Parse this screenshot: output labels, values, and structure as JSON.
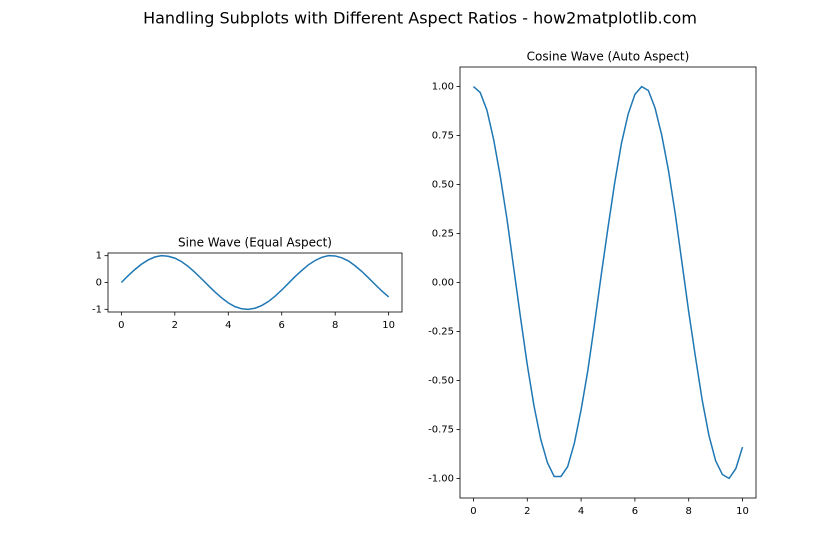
{
  "title": "Handling Subplots with Different Aspect Ratios - how2matplotlib.com",
  "chart_data": [
    {
      "type": "line",
      "title": "Sine Wave (Equal Aspect)",
      "color": "#1f77b4",
      "x": [
        0,
        0.25,
        0.5,
        0.75,
        1,
        1.25,
        1.5,
        1.75,
        2,
        2.25,
        2.5,
        2.75,
        3,
        3.25,
        3.5,
        3.75,
        4,
        4.25,
        4.5,
        4.75,
        5,
        5.25,
        5.5,
        5.75,
        6,
        6.25,
        6.5,
        6.75,
        7,
        7.25,
        7.5,
        7.75,
        8,
        8.25,
        8.5,
        8.75,
        9,
        9.25,
        9.5,
        9.75,
        10
      ],
      "values": [
        0,
        0.25,
        0.48,
        0.68,
        0.84,
        0.95,
        1.0,
        0.98,
        0.91,
        0.78,
        0.6,
        0.38,
        0.14,
        -0.11,
        -0.35,
        -0.57,
        -0.76,
        -0.9,
        -0.98,
        -1.0,
        -0.96,
        -0.86,
        -0.71,
        -0.51,
        -0.28,
        -0.03,
        0.22,
        0.45,
        0.66,
        0.82,
        0.94,
        1.0,
        0.99,
        0.92,
        0.8,
        0.62,
        0.41,
        0.17,
        -0.08,
        -0.32,
        -0.54
      ],
      "xlim": [
        -0.5,
        10.5
      ],
      "xticks": [
        0,
        2,
        4,
        6,
        8,
        10
      ],
      "ylim": [
        -1.1,
        1.1
      ],
      "yticks": [
        -1,
        0,
        1
      ]
    },
    {
      "type": "line",
      "title": "Cosine Wave (Auto Aspect)",
      "color": "#1f77b4",
      "x": [
        0,
        0.25,
        0.5,
        0.75,
        1,
        1.25,
        1.5,
        1.75,
        2,
        2.25,
        2.5,
        2.75,
        3,
        3.25,
        3.5,
        3.75,
        4,
        4.25,
        4.5,
        4.75,
        5,
        5.25,
        5.5,
        5.75,
        6,
        6.25,
        6.5,
        6.75,
        7,
        7.25,
        7.5,
        7.75,
        8,
        8.25,
        8.5,
        8.75,
        9,
        9.25,
        9.5,
        9.75,
        10
      ],
      "values": [
        1.0,
        0.97,
        0.88,
        0.73,
        0.54,
        0.32,
        0.07,
        -0.18,
        -0.42,
        -0.63,
        -0.8,
        -0.92,
        -0.99,
        -0.99,
        -0.94,
        -0.82,
        -0.65,
        -0.45,
        -0.21,
        0.04,
        0.28,
        0.51,
        0.71,
        0.86,
        0.96,
        1.0,
        0.98,
        0.89,
        0.75,
        0.57,
        0.35,
        0.1,
        -0.15,
        -0.38,
        -0.6,
        -0.78,
        -0.91,
        -0.98,
        -1.0,
        -0.95,
        -0.84
      ],
      "xlim": [
        -0.5,
        10.5
      ],
      "xticks": [
        0,
        2,
        4,
        6,
        8,
        10
      ],
      "ylim": [
        -1.1,
        1.1
      ],
      "yticks": [
        {
          "value": -1,
          "label": "-1.00"
        },
        {
          "value": -0.75,
          "label": "-0.75"
        },
        {
          "value": -0.5,
          "label": "-0.50"
        },
        {
          "value": -0.25,
          "label": "-0.25"
        },
        {
          "value": 0,
          "label": "0.00"
        },
        {
          "value": 0.25,
          "label": "0.25"
        },
        {
          "value": 0.5,
          "label": "0.50"
        },
        {
          "value": 0.75,
          "label": "0.75"
        },
        {
          "value": 1,
          "label": "1.00"
        }
      ]
    }
  ]
}
